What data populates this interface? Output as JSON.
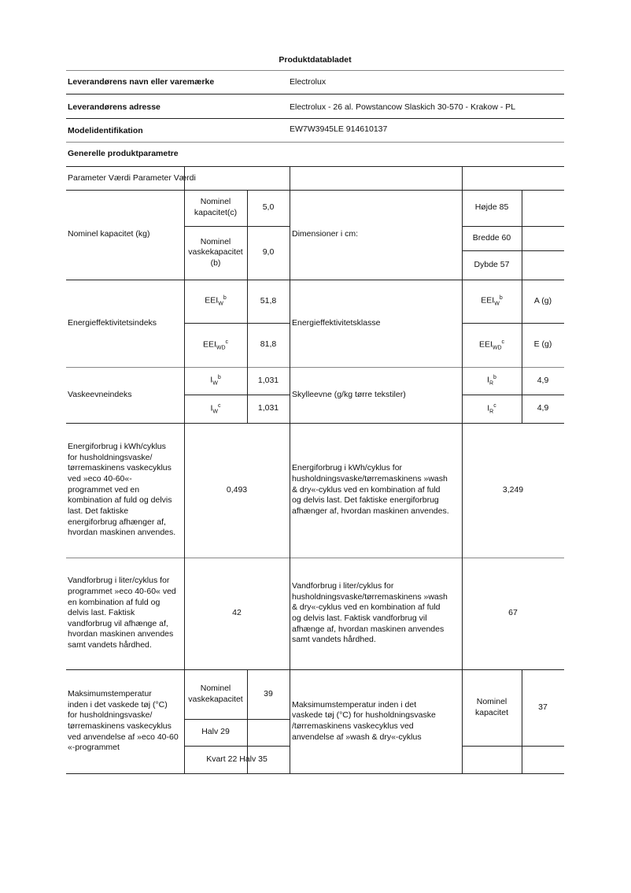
{
  "title": "Produktdatabladet",
  "supplier": {
    "label": "Leverandørens navn eller varemærke",
    "value": "Electrolux"
  },
  "address": {
    "label": "Leverandørens adresse",
    "value": "Electrolux - 26 al. Powstancow Slaskich 30-570 - Krakow - PL"
  },
  "model": {
    "label": "Modelidentifikation",
    "value": "EW7W3945LE 914610137"
  },
  "section": "Generelle produktparametre",
  "header_row": "Parameter Værdi Parameter Værdi",
  "capacity": {
    "label": "Nominel kapacitet (kg)",
    "sub1": "Nominel\nkapacitet(c)",
    "val1": "5,0",
    "sub2": "Nominel\nvaskekapacitet\n(b)",
    "val2": "9,0",
    "dim_label": "Dimensioner i cm:",
    "height": "Højde 85",
    "width": "Bredde 60",
    "depth": "Dybde 57"
  },
  "eei": {
    "label": "Energieffektivitetsindeks",
    "sym": "EEI",
    "sub_w": "W",
    "sub_wd": "WD",
    "sup_b": "b",
    "sup_c": "c",
    "val_w": "51,8",
    "val_wd": "81,8",
    "class_label": "Energieffektivitetsklasse",
    "class_w": "A (g)",
    "class_wd": "E (g)"
  },
  "washing": {
    "label": "Vaskeevneindeks",
    "sym": "I",
    "sub_w": "W",
    "sup_b": "b",
    "sup_c": "c",
    "val1": "1,031",
    "val2": "1,031",
    "rinse_label": "Skylleevne (g/kg tørre tekstiler)",
    "sub_r": "R",
    "rinse1": "4,9",
    "rinse2": "4,9"
  },
  "energy": {
    "label": "Energiforbrug i kWh/cyklus\nfor husholdningsvaske/\ntørremaskinens vaskecyklus\nved »eco 40-60«-\nprogrammet ved en\nkombination af fuld og delvis\nlast. Det faktiske\nenergiforbrug afhænger af,\nhvordan maskinen anvendes.",
    "value": "0,493",
    "wd_label": "Energiforbrug i kWh/cyklus for\nhusholdningsvaske/tørremaskinens »wash\n& dry«-cyklus ved en kombination af fuld\nog delvis last. Det faktiske energiforbrug\nafhænger af, hvordan maskinen anvendes.",
    "wd_value": "3,249"
  },
  "water": {
    "label": "Vandforbrug i liter/cyklus for\nprogrammet »eco 40-60« ved\nen kombination af fuld og\ndelvis last. Faktisk\nvandforbrug vil afhænge af,\nhvordan maskinen anvendes\nsamt vandets hårdhed.",
    "value": "42",
    "wd_label": "Vandforbrug i liter/cyklus for\nhusholdningsvaske/tørremaskinens »wash\n& dry«-cyklus ved en kombination af fuld\nog delvis last. Faktisk vandforbrug vil\nafhænge af, hvordan maskinen anvendes\nsamt vandets hårdhed.",
    "wd_value": "67"
  },
  "temperature": {
    "label": "Maksimumstemperatur\ninden i det vaskede tøj (°C)\nfor husholdningsvaske/\ntørremaskinens vaskecyklus\nved anvendelse af »eco 40-60\n«-programmet",
    "sub1": "Nominel\nvaskekapacitet",
    "val1": "39",
    "half": "Halv 29",
    "quarter": "Kvart 22 Halv 35",
    "wd_label": "Maksimumstemperatur inden i det\nvaskede tøj (°C) for husholdningsvaske\n/tørremaskinens vaskecyklus ved\nanvendelse af »wash & dry«-cyklus",
    "wd_sub": "Nominel\nkapacitet",
    "wd_val": "37"
  }
}
